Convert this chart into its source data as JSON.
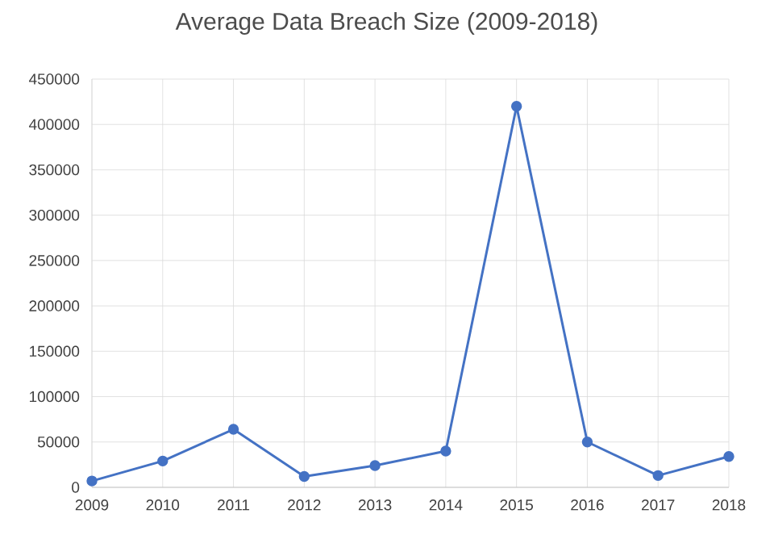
{
  "chart_data": {
    "type": "line",
    "title": "Average Data Breach Size (2009-2018)",
    "categories": [
      "2009",
      "2010",
      "2011",
      "2012",
      "2013",
      "2014",
      "2015",
      "2016",
      "2017",
      "2018"
    ],
    "values": [
      7000,
      29000,
      64000,
      12000,
      24000,
      40000,
      420000,
      50000,
      13000,
      34000
    ],
    "color": "#4472c4",
    "marker": "circle",
    "grid": true,
    "ylim": [
      0,
      450000
    ],
    "yticks": [
      0,
      50000,
      100000,
      150000,
      200000,
      250000,
      300000,
      350000,
      400000,
      450000
    ]
  }
}
